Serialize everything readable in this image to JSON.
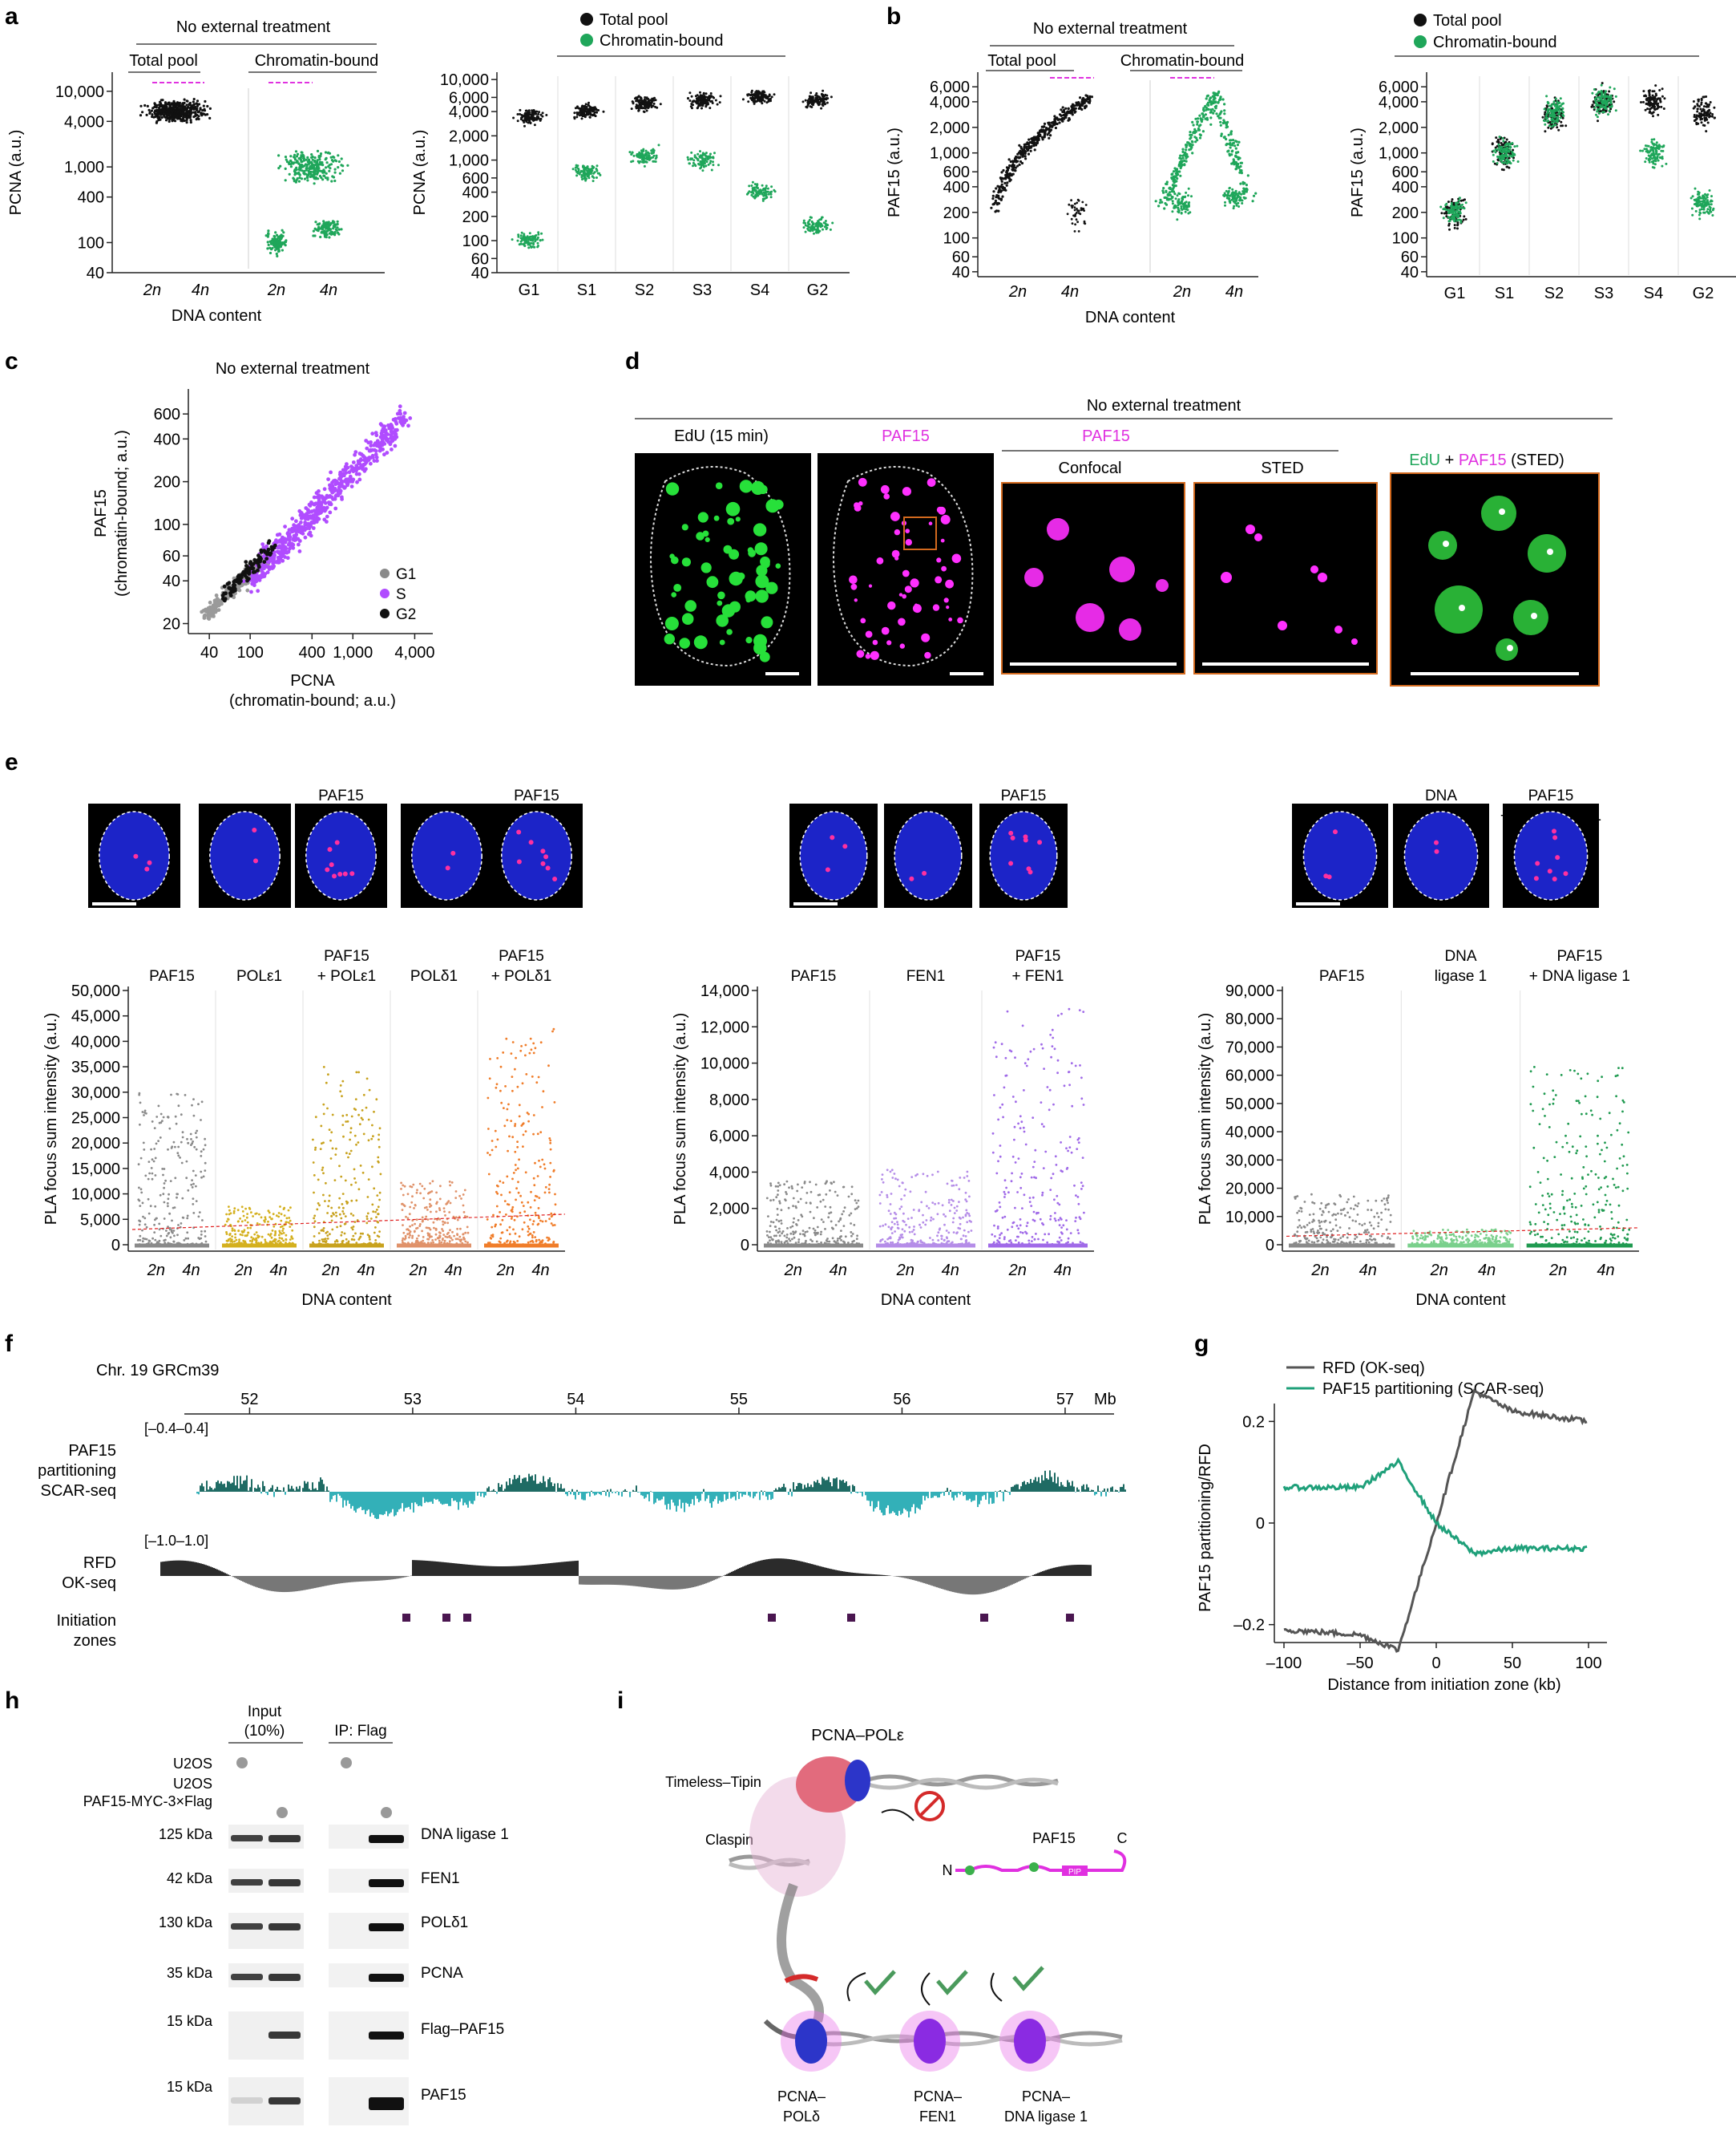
{
  "colors": {
    "black": "#111111",
    "green": "#1fa65a",
    "magenta": "#e032e0",
    "purple": "#a64cff",
    "gray": "#8a8a8a",
    "gold": "#d4b01e",
    "orange": "#f07d2a",
    "lavender": "#b07de8",
    "teal": "#1c8c8c",
    "darkteal": "#1f6b64",
    "rfd": "#555555",
    "izone": "#4a1650"
  },
  "panel_a": {
    "label": "a",
    "left": {
      "header": "No external treatment",
      "groups": [
        "Total pool",
        "Chromatin-bound"
      ],
      "ylabel": "PCNA (a.u.)",
      "xlabel": "DNA content",
      "yticks": [
        "10,000",
        "4,000",
        "1,000",
        "400",
        "100",
        "40"
      ],
      "xticks": [
        "2n",
        "4n",
        "2n",
        "4n"
      ]
    },
    "right": {
      "legend": [
        "Total pool",
        "Chromatin-bound"
      ],
      "ylabel": "PCNA (a.u.)",
      "yticks": [
        "10,000",
        "6,000",
        "4,000",
        "2,000",
        "1,000",
        "600",
        "400",
        "200",
        "100",
        "60",
        "40"
      ],
      "categories": [
        "G1",
        "S1",
        "S2",
        "S3",
        "S4",
        "G2"
      ]
    }
  },
  "panel_b": {
    "label": "b",
    "left": {
      "header": "No external treatment",
      "groups": [
        "Total pool",
        "Chromatin-bound"
      ],
      "ylabel": "PAF15 (a.u.)",
      "xlabel": "DNA content",
      "yticks": [
        "6,000",
        "4,000",
        "2,000",
        "1,000",
        "600",
        "400",
        "200",
        "100",
        "60",
        "40"
      ],
      "xticks": [
        "2n",
        "4n",
        "2n",
        "4n"
      ]
    },
    "right": {
      "legend": [
        "Total pool",
        "Chromatin-bound"
      ],
      "ylabel": "PAF15 (a.u.)",
      "yticks": [
        "6,000",
        "4,000",
        "2,000",
        "1,000",
        "600",
        "400",
        "200",
        "100",
        "60",
        "40"
      ],
      "categories": [
        "G1",
        "S1",
        "S2",
        "S3",
        "S4",
        "G2"
      ]
    }
  },
  "panel_c": {
    "label": "c",
    "title": "No external treatment",
    "ylabel1": "PAF15",
    "ylabel2": "(chromatin-bound; a.u.)",
    "xlabel1": "PCNA",
    "xlabel2": "(chromatin-bound; a.u.)",
    "yticks": [
      "600",
      "400",
      "200",
      "100",
      "60",
      "40",
      "20"
    ],
    "xticks": [
      "40",
      "100",
      "400",
      "1,000",
      "4,000"
    ],
    "legend": [
      "G1",
      "S",
      "G2"
    ]
  },
  "panel_d": {
    "label": "d",
    "header": "No external treatment",
    "img1": "EdU (15 min)",
    "img2": "PAF15",
    "img3_group": "PAF15",
    "img3": "Confocal",
    "img4": "STED",
    "img5_a": "EdU",
    "img5_b": " + ",
    "img5_c": "PAF15",
    "img5_d": " (STED)"
  },
  "panel_e": {
    "label": "e",
    "group1": {
      "thumbs": [
        "PAF15",
        "POLε1",
        "PAF15\n+ POLε1",
        "POLδ1",
        "PAF15\n+ POLδ1"
      ],
      "cols": [
        "PAF15",
        "POLε1",
        "PAF15\n+ POLε1",
        "POLδ1",
        "PAF15\n+ POLδ1"
      ],
      "yticks": [
        "50,000",
        "45,000",
        "40,000",
        "35,000",
        "30,000",
        "25,000",
        "20,000",
        "15,000",
        "10,000",
        "5,000",
        "0"
      ]
    },
    "group2": {
      "thumbs": [
        "PAF15",
        "FEN1",
        "PAF15\n+ FEN1"
      ],
      "cols": [
        "PAF15",
        "FEN1",
        "PAF15\n+ FEN1"
      ],
      "yticks": [
        "14,000",
        "12,000",
        "10,000",
        "8,000",
        "6,000",
        "4,000",
        "2,000",
        "0"
      ]
    },
    "group3": {
      "thumbs": [
        "PAF15",
        "DNA\nligase 1",
        "PAF15\n+ DNA ligase 1"
      ],
      "cols": [
        "PAF15",
        "DNA\nligase 1",
        "PAF15\n+ DNA ligase 1"
      ],
      "yticks": [
        "90,000",
        "80,000",
        "70,000",
        "60,000",
        "50,000",
        "40,000",
        "30,000",
        "20,000",
        "10,000",
        "0"
      ]
    },
    "ylabel": "PLA focus sum intensity (a.u.)",
    "xlabel": "DNA content",
    "xticks": [
      "2n",
      "4n"
    ]
  },
  "panel_f": {
    "label": "f",
    "chr": "Chr. 19 GRCm39",
    "ticks": [
      "52",
      "53",
      "54",
      "55",
      "56",
      "57"
    ],
    "unit": "Mb",
    "track1": [
      "PAF15",
      "partitioning",
      "SCAR-seq"
    ],
    "range1": "[–0.4–0.4]",
    "track2": [
      "RFD",
      "OK-seq"
    ],
    "range2": "[–1.0–1.0]",
    "track3": [
      "Initiation",
      "zones"
    ]
  },
  "panel_g": {
    "label": "g",
    "legend": [
      "RFD (OK-seq)",
      "PAF15 partitioning (SCAR-seq)"
    ],
    "ylabel": "PAF15 partitioning/RFD",
    "xlabel": "Distance from initiation zone (kb)",
    "yticks": [
      "0.2",
      "0",
      "–0.2"
    ],
    "xticks": [
      "–100",
      "–50",
      "0",
      "50",
      "100"
    ]
  },
  "panel_h": {
    "label": "h",
    "input": [
      "Input",
      "(10%)"
    ],
    "ip": "IP: Flag",
    "rows": [
      "U2OS",
      "U2OS",
      "PAF15-MYC-3×Flag"
    ],
    "blots": [
      {
        "kda": "125 kDa",
        "name": "DNA ligase 1"
      },
      {
        "kda": "42 kDa",
        "name": "FEN1"
      },
      {
        "kda": "130 kDa",
        "name": "POLδ1"
      },
      {
        "kda": "35 kDa",
        "name": "PCNA"
      },
      {
        "kda": "15 kDa",
        "name": "Flag–PAF15"
      },
      {
        "kda": "15 kDa",
        "name": "PAF15"
      }
    ]
  },
  "panel_i": {
    "label": "i",
    "pole": "PCNA–POLε",
    "tt": "Timeless–Tipin",
    "claspin": "Claspin",
    "paf15": "PAF15",
    "n": "N",
    "c": "C",
    "pip": "PIP",
    "bottom": [
      "PCNA–",
      "POLδ",
      "PCNA–",
      "FEN1",
      "PCNA–",
      "DNA ligase 1"
    ]
  },
  "chart_data": [
    {
      "type": "scatter",
      "panel": "a-left",
      "ylabel": "PCNA (a.u.)",
      "xlabel": "DNA content",
      "series": [
        {
          "name": "Total pool",
          "center_y": 6000
        },
        {
          "name": "Chromatin-bound",
          "clusters_y": [
            100,
            1000,
            150
          ]
        }
      ]
    },
    {
      "type": "scatter",
      "panel": "a-right",
      "categories": [
        "G1",
        "S1",
        "S2",
        "S3",
        "S4",
        "G2"
      ],
      "series": [
        {
          "name": "Total pool",
          "values": [
            3500,
            4000,
            5000,
            5500,
            6000,
            5500
          ]
        },
        {
          "name": "Chromatin-bound",
          "values": [
            100,
            700,
            1100,
            1000,
            400,
            150
          ]
        }
      ]
    },
    {
      "type": "scatter",
      "panel": "b-right",
      "categories": [
        "G1",
        "S1",
        "S2",
        "S3",
        "S4",
        "G2"
      ],
      "series": [
        {
          "name": "Total pool",
          "values": [
            200,
            1000,
            2800,
            4000,
            4000,
            3000
          ]
        },
        {
          "name": "Chromatin-bound",
          "values": [
            200,
            1000,
            3000,
            4000,
            1000,
            250
          ]
        }
      ]
    },
    {
      "type": "line",
      "panel": "g",
      "x": [
        -100,
        -50,
        -25,
        0,
        25,
        50,
        100
      ],
      "series": [
        {
          "name": "RFD (OK-seq)",
          "values": [
            -0.21,
            -0.22,
            -0.25,
            0.0,
            0.26,
            0.22,
            0.2
          ]
        },
        {
          "name": "PAF15 partitioning (SCAR-seq)",
          "values": [
            0.07,
            0.07,
            0.12,
            0.0,
            -0.06,
            -0.05,
            -0.05
          ]
        }
      ],
      "xlim": [
        -100,
        100
      ],
      "ylim": [
        -0.3,
        0.3
      ]
    }
  ]
}
